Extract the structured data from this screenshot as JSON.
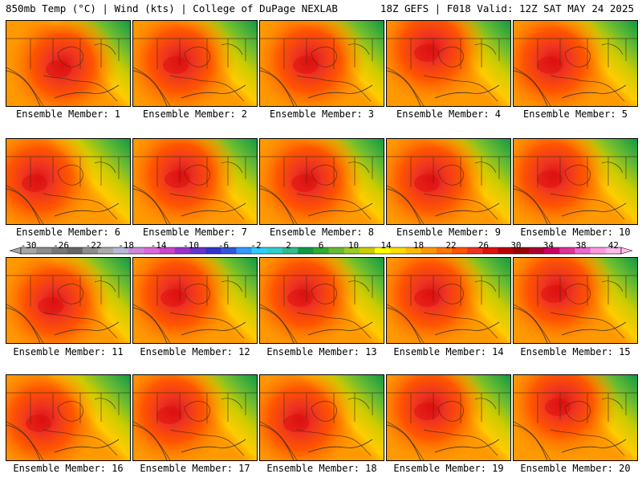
{
  "header": {
    "left": "850mb Temp (°C) | Wind (kts) | College of DuPage NEXLAB",
    "right": "18Z GEFS | F018 Valid: 12Z SAT MAY 24 2025"
  },
  "members": [
    {
      "label": "Ensemble Member: 1",
      "hot": [
        70,
        55
      ]
    },
    {
      "label": "Ensemble Member: 2",
      "hot": [
        58,
        50
      ]
    },
    {
      "label": "Ensemble Member: 3",
      "hot": [
        62,
        50
      ]
    },
    {
      "label": "Ensemble Member: 4",
      "hot": [
        55,
        35
      ]
    },
    {
      "label": "Ensemble Member: 5",
      "hot": [
        50,
        50
      ]
    },
    {
      "label": "Ensemble Member: 6",
      "hot": [
        40,
        50
      ]
    },
    {
      "label": "Ensemble Member: 7",
      "hot": [
        60,
        45
      ]
    },
    {
      "label": "Ensemble Member: 8",
      "hot": [
        60,
        50
      ]
    },
    {
      "label": "Ensemble Member: 9",
      "hot": [
        55,
        50
      ]
    },
    {
      "label": "Ensemble Member: 10",
      "hot": [
        50,
        45
      ]
    },
    {
      "label": "Ensemble Member: 11",
      "hot": [
        60,
        55
      ]
    },
    {
      "label": "Ensemble Member: 12",
      "hot": [
        55,
        45
      ]
    },
    {
      "label": "Ensemble Member: 13",
      "hot": [
        55,
        45
      ]
    },
    {
      "label": "Ensemble Member: 14",
      "hot": [
        55,
        45
      ]
    },
    {
      "label": "Ensemble Member: 15",
      "hot": [
        55,
        40
      ]
    },
    {
      "label": "Ensemble Member: 16",
      "hot": [
        45,
        55
      ]
    },
    {
      "label": "Ensemble Member: 17",
      "hot": [
        50,
        45
      ]
    },
    {
      "label": "Ensemble Member: 18",
      "hot": [
        50,
        55
      ]
    },
    {
      "label": "Ensemble Member: 19",
      "hot": [
        55,
        40
      ]
    },
    {
      "label": "Ensemble Member: 20",
      "hot": [
        60,
        35
      ]
    }
  ],
  "colorbar": {
    "ticks": [
      "-30",
      "-26",
      "-22",
      "-18",
      "-14",
      "-10",
      "-6",
      "-2",
      "2",
      "6",
      "10",
      "14",
      "18",
      "22",
      "26",
      "30",
      "34",
      "38",
      "42"
    ],
    "colors": [
      "#a6a6a6",
      "#8c8c8c",
      "#777777",
      "#666666",
      "#8c8c8c",
      "#aaaaaa",
      "#b8b8d8",
      "#cc88dd",
      "#dd66dd",
      "#cc44cc",
      "#9933cc",
      "#6633cc",
      "#3333cc",
      "#3355dd",
      "#3399ff",
      "#33ccff",
      "#33cccc",
      "#33bb88",
      "#119944",
      "#33aa33",
      "#66bb33",
      "#99cc22",
      "#cccc00",
      "#ffff00",
      "#ffdd00",
      "#ffbb00",
      "#ff9900",
      "#ff7700",
      "#ff5500",
      "#ee3322",
      "#dd1111",
      "#bb0000",
      "#990000",
      "#aa0033",
      "#cc0066",
      "#dd3399",
      "#ee66cc",
      "#ff99dd",
      "#ffbbee"
    ]
  }
}
